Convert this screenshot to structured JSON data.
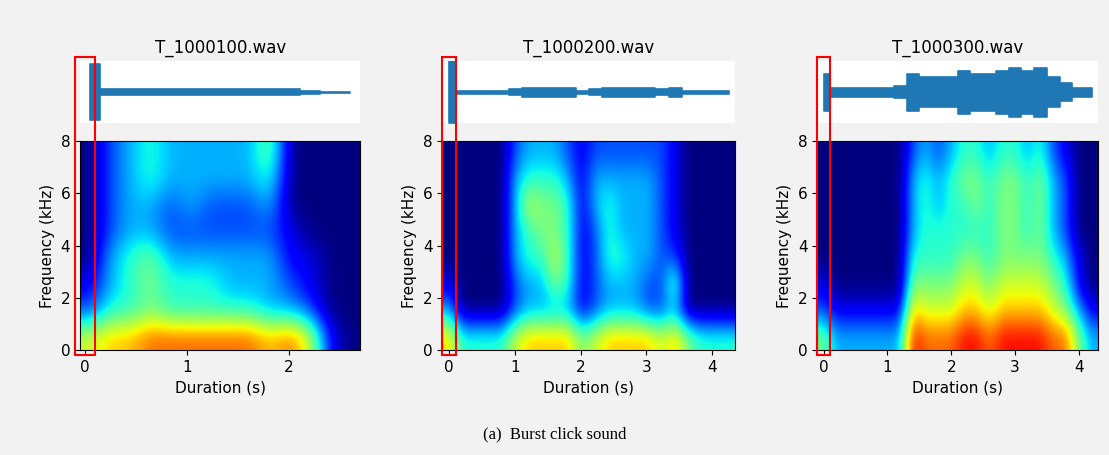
{
  "caption": "(a)  Burst click sound",
  "chart_data": [
    {
      "type": "spectrogram",
      "title": "T_1000100.wav",
      "x_label": "Duration (s)",
      "y_label": "Frequency (kHz)",
      "xlim": [
        -0.05,
        2.7
      ],
      "ylim": [
        0,
        8
      ],
      "xticks": [
        0,
        1,
        2
      ],
      "yticks": [
        0,
        2,
        4,
        6,
        8
      ],
      "clim": [
        0,
        1
      ],
      "wave_ylim": [
        -1,
        1
      ],
      "highlight_range": [
        -0.1,
        0.1
      ],
      "waveform": [
        0.9,
        0.1,
        0.1,
        0.1,
        0.1,
        0.1,
        0.1,
        0.1,
        0.1,
        0.1,
        0.1,
        0.05,
        0.02,
        0.02
      ],
      "cells": [
        [
          0.6,
          0.7,
          0.7,
          0.8,
          0.8,
          0.8,
          0.8,
          0.8,
          0.8,
          0.7,
          0.8,
          0.6,
          0.1,
          0.0
        ],
        [
          0.2,
          0.4,
          0.4,
          0.5,
          0.4,
          0.4,
          0.4,
          0.4,
          0.4,
          0.3,
          0.3,
          0.2,
          0.0,
          0.0
        ],
        [
          0.1,
          0.3,
          0.4,
          0.5,
          0.4,
          0.4,
          0.4,
          0.3,
          0.3,
          0.3,
          0.2,
          0.1,
          0.0,
          0.0
        ],
        [
          0.0,
          0.3,
          0.4,
          0.5,
          0.3,
          0.3,
          0.3,
          0.3,
          0.3,
          0.3,
          0.1,
          0.1,
          0.0,
          0.0
        ],
        [
          0.0,
          0.2,
          0.3,
          0.3,
          0.2,
          0.2,
          0.2,
          0.2,
          0.2,
          0.2,
          0.1,
          0.0,
          0.0,
          0.0
        ],
        [
          0.0,
          0.2,
          0.3,
          0.3,
          0.2,
          0.3,
          0.2,
          0.2,
          0.2,
          0.3,
          0.0,
          0.0,
          0.0,
          0.0
        ],
        [
          0.0,
          0.2,
          0.3,
          0.4,
          0.3,
          0.3,
          0.3,
          0.3,
          0.3,
          0.4,
          0.0,
          0.0,
          0.0,
          0.0
        ],
        [
          0.0,
          0.2,
          0.3,
          0.4,
          0.3,
          0.3,
          0.3,
          0.3,
          0.3,
          0.5,
          0.0,
          0.0,
          0.0,
          0.0
        ]
      ]
    },
    {
      "type": "spectrogram",
      "title": "T_1000200.wav",
      "x_label": "Duration (s)",
      "y_label": "Frequency (kHz)",
      "xlim": [
        -0.1,
        4.35
      ],
      "ylim": [
        0,
        8
      ],
      "xticks": [
        0,
        1,
        2,
        3,
        4
      ],
      "yticks": [
        0,
        2,
        4,
        6,
        8
      ],
      "clim": [
        0,
        1
      ],
      "wave_ylim": [
        -1,
        1
      ],
      "highlight_range": [
        -0.1,
        0.1
      ],
      "waveform": [
        1.0,
        0.05,
        0.05,
        0.05,
        0.05,
        0.1,
        0.15,
        0.15,
        0.15,
        0.15,
        0.05,
        0.1,
        0.15,
        0.15,
        0.15,
        0.15,
        0.1,
        0.15,
        0.05,
        0.05,
        0.05,
        0.05
      ],
      "cells": [
        [
          0.7,
          0.4,
          0.4,
          0.4,
          0.4,
          0.6,
          0.7,
          0.7,
          0.7,
          0.7,
          0.5,
          0.6,
          0.7,
          0.7,
          0.7,
          0.7,
          0.6,
          0.7,
          0.5,
          0.4,
          0.4,
          0.4
        ],
        [
          0.3,
          0.0,
          0.0,
          0.0,
          0.0,
          0.2,
          0.3,
          0.3,
          0.3,
          0.3,
          0.1,
          0.2,
          0.3,
          0.3,
          0.3,
          0.2,
          0.2,
          0.3,
          0.0,
          0.0,
          0.0,
          0.0
        ],
        [
          0.1,
          0.0,
          0.0,
          0.0,
          0.0,
          0.2,
          0.3,
          0.3,
          0.5,
          0.4,
          0.1,
          0.2,
          0.3,
          0.3,
          0.3,
          0.2,
          0.2,
          0.5,
          0.0,
          0.0,
          0.0,
          0.0
        ],
        [
          0.0,
          0.0,
          0.0,
          0.0,
          0.0,
          0.3,
          0.4,
          0.4,
          0.6,
          0.4,
          0.1,
          0.2,
          0.4,
          0.4,
          0.3,
          0.3,
          0.2,
          0.2,
          0.0,
          0.0,
          0.0,
          0.0
        ],
        [
          0.0,
          0.0,
          0.0,
          0.0,
          0.0,
          0.3,
          0.4,
          0.5,
          0.5,
          0.4,
          0.1,
          0.2,
          0.4,
          0.3,
          0.3,
          0.3,
          0.2,
          0.1,
          0.0,
          0.0,
          0.0,
          0.0
        ],
        [
          0.0,
          0.0,
          0.0,
          0.0,
          0.0,
          0.3,
          0.6,
          0.5,
          0.5,
          0.4,
          0.1,
          0.3,
          0.4,
          0.3,
          0.3,
          0.3,
          0.2,
          0.1,
          0.0,
          0.0,
          0.0,
          0.0
        ],
        [
          0.0,
          0.0,
          0.0,
          0.0,
          0.0,
          0.3,
          0.4,
          0.4,
          0.4,
          0.3,
          0.1,
          0.3,
          0.3,
          0.3,
          0.3,
          0.3,
          0.2,
          0.1,
          0.0,
          0.0,
          0.0,
          0.0
        ],
        [
          0.0,
          0.0,
          0.0,
          0.0,
          0.0,
          0.2,
          0.3,
          0.3,
          0.3,
          0.2,
          0.1,
          0.2,
          0.2,
          0.2,
          0.2,
          0.2,
          0.2,
          0.1,
          0.0,
          0.0,
          0.0,
          0.0
        ]
      ]
    },
    {
      "type": "spectrogram",
      "title": "T_1000300.wav",
      "x_label": "Duration (s)",
      "y_label": "Frequency (kHz)",
      "xlim": [
        -0.1,
        4.3
      ],
      "ylim": [
        0,
        8
      ],
      "xticks": [
        0,
        1,
        2,
        3,
        4
      ],
      "yticks": [
        0,
        2,
        4,
        6,
        8
      ],
      "clim": [
        0,
        1
      ],
      "wave_ylim": [
        -1,
        1
      ],
      "highlight_range": [
        -0.1,
        0.1
      ],
      "waveform": [
        0.6,
        0.15,
        0.15,
        0.15,
        0.15,
        0.15,
        0.2,
        0.6,
        0.5,
        0.5,
        0.5,
        0.7,
        0.6,
        0.6,
        0.7,
        0.8,
        0.7,
        0.8,
        0.5,
        0.3,
        0.15,
        0.15
      ],
      "cells": [
        [
          0.5,
          0.3,
          0.3,
          0.3,
          0.3,
          0.3,
          0.3,
          0.9,
          0.8,
          0.8,
          0.8,
          0.9,
          0.9,
          0.8,
          0.9,
          0.9,
          0.9,
          0.9,
          0.8,
          0.8,
          0.5,
          0.3
        ],
        [
          0.2,
          0.1,
          0.1,
          0.1,
          0.1,
          0.1,
          0.1,
          0.7,
          0.6,
          0.6,
          0.6,
          0.7,
          0.7,
          0.6,
          0.7,
          0.7,
          0.7,
          0.7,
          0.6,
          0.5,
          0.3,
          0.1
        ],
        [
          0.1,
          0.0,
          0.0,
          0.0,
          0.0,
          0.0,
          0.0,
          0.5,
          0.5,
          0.5,
          0.5,
          0.6,
          0.6,
          0.5,
          0.6,
          0.6,
          0.6,
          0.6,
          0.5,
          0.4,
          0.1,
          0.0
        ],
        [
          0.0,
          0.0,
          0.0,
          0.0,
          0.0,
          0.0,
          0.0,
          0.4,
          0.4,
          0.4,
          0.4,
          0.5,
          0.5,
          0.4,
          0.5,
          0.5,
          0.5,
          0.5,
          0.4,
          0.3,
          0.1,
          0.0
        ],
        [
          0.0,
          0.0,
          0.0,
          0.0,
          0.0,
          0.0,
          0.0,
          0.3,
          0.4,
          0.4,
          0.4,
          0.4,
          0.4,
          0.4,
          0.5,
          0.5,
          0.4,
          0.5,
          0.3,
          0.2,
          0.0,
          0.0
        ],
        [
          0.0,
          0.0,
          0.0,
          0.0,
          0.0,
          0.0,
          0.0,
          0.3,
          0.4,
          0.3,
          0.4,
          0.4,
          0.5,
          0.4,
          0.5,
          0.5,
          0.4,
          0.5,
          0.3,
          0.2,
          0.0,
          0.0
        ],
        [
          0.0,
          0.0,
          0.0,
          0.0,
          0.0,
          0.0,
          0.0,
          0.3,
          0.4,
          0.3,
          0.4,
          0.5,
          0.5,
          0.4,
          0.5,
          0.5,
          0.4,
          0.5,
          0.3,
          0.2,
          0.0,
          0.0
        ],
        [
          0.0,
          0.0,
          0.0,
          0.0,
          0.0,
          0.0,
          0.0,
          0.2,
          0.3,
          0.2,
          0.3,
          0.4,
          0.4,
          0.3,
          0.4,
          0.4,
          0.3,
          0.4,
          0.2,
          0.1,
          0.0,
          0.0
        ]
      ]
    }
  ]
}
